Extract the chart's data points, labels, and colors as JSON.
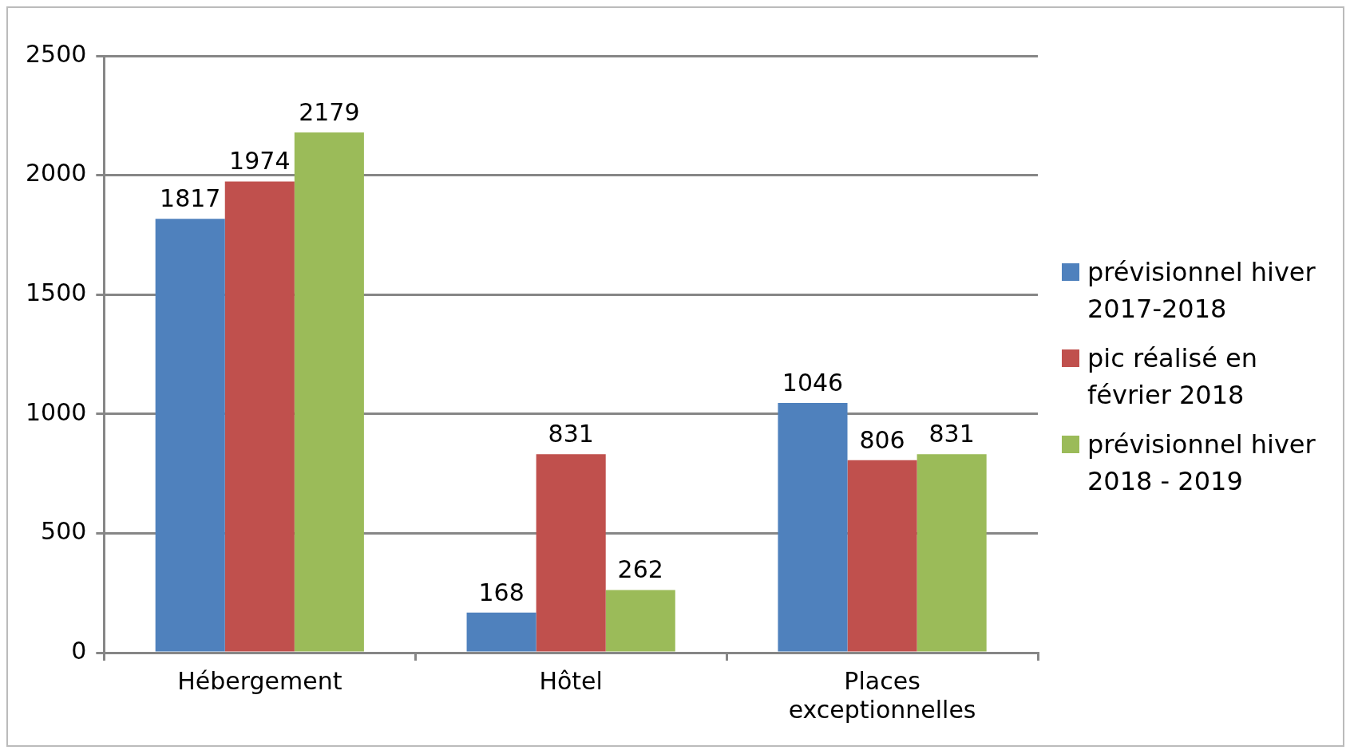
{
  "chart_data": {
    "type": "bar",
    "categories": [
      "Hébergement",
      "Hôtel",
      "Places exceptionnelles"
    ],
    "series": [
      {
        "name": "prévisionnel hiver 2017-2018",
        "color": "#4f81bd",
        "values": [
          1817,
          168,
          1046
        ]
      },
      {
        "name": "pic réalisé en février 2018",
        "color": "#c0504d",
        "values": [
          1974,
          831,
          806
        ]
      },
      {
        "name": "prévisionnel hiver 2018 - 2019",
        "color": "#9bbb59",
        "values": [
          2179,
          262,
          831
        ]
      }
    ],
    "ylim": [
      0,
      2500
    ],
    "yticks": [
      0,
      500,
      1000,
      1500,
      2000,
      2500
    ],
    "grid": "y",
    "legend": "right",
    "data_labels": true
  }
}
